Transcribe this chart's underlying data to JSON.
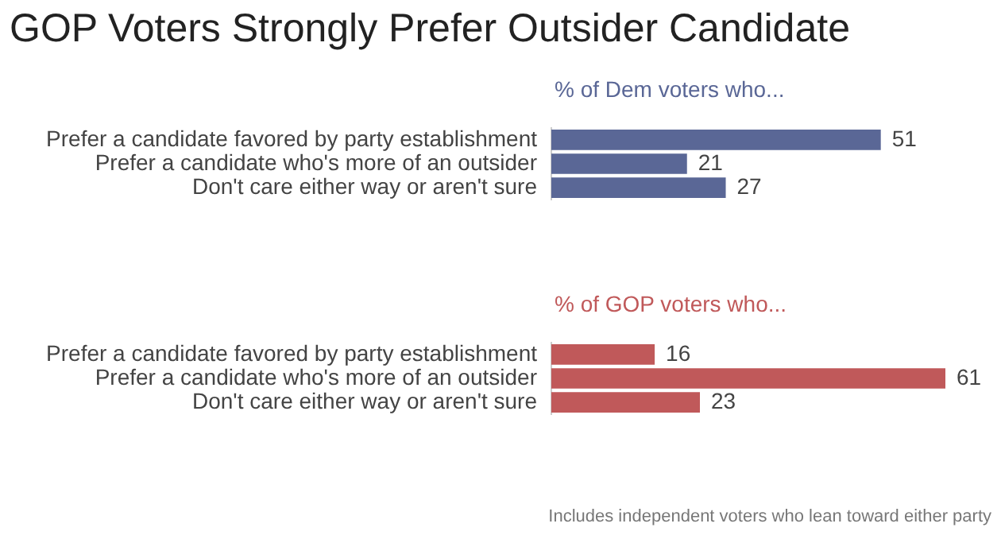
{
  "chart_data": [
    {
      "type": "bar",
      "orientation": "horizontal",
      "title": "GOP Voters Strongly Prefer Outsider Candidate",
      "subtitle": "% of Dem voters who...",
      "categories": [
        "Prefer a candidate favored by party establishment",
        "Prefer a candidate who's more of an outsider",
        "Don't care either way or aren't sure"
      ],
      "values": [
        51,
        21,
        27
      ],
      "color": "#5a6796",
      "data_labels": true,
      "tick_labels": "y"
    },
    {
      "type": "bar",
      "orientation": "horizontal",
      "subtitle": "% of GOP voters who...",
      "categories": [
        "Prefer a candidate favored by party establishment",
        "Prefer a candidate who's more of an outsider",
        "Don't care either way or aren't sure"
      ],
      "values": [
        16,
        61,
        23
      ],
      "color": "#c0595a",
      "data_labels": true,
      "tick_labels": "y",
      "annotations": [
        "Includes independent voters who lean toward either party"
      ]
    }
  ]
}
